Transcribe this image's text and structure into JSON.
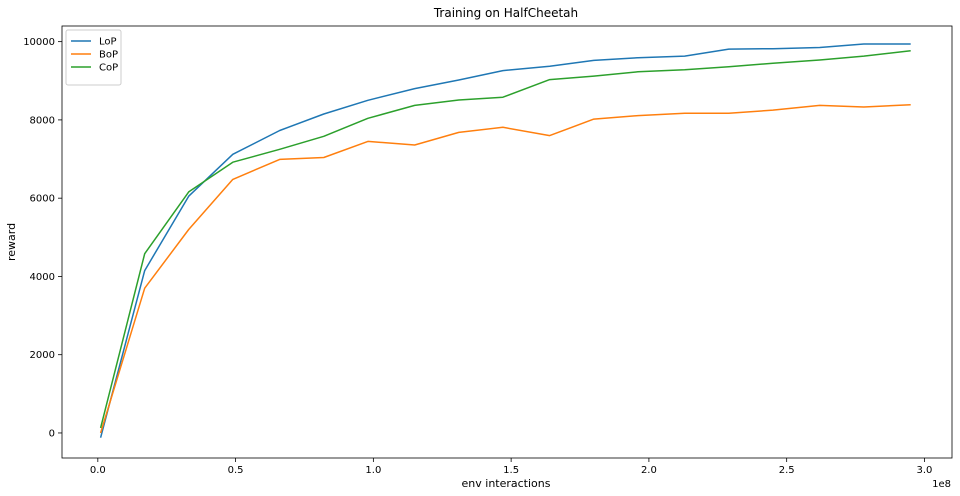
{
  "chart_data": {
    "type": "line",
    "title": "Training on HalfCheetah",
    "xlabel": "env interactions",
    "ylabel": "reward",
    "x_offset_label": "1e8",
    "xlim": [
      -0.13,
      3.1
    ],
    "ylim": [
      -640,
      10400
    ],
    "xticks": [
      0.0,
      0.5,
      1.0,
      1.5,
      2.0,
      2.5,
      3.0
    ],
    "xtick_labels": [
      "0.0",
      "0.5",
      "1.0",
      "1.5",
      "2.0",
      "2.5",
      "3.0"
    ],
    "yticks": [
      0,
      2000,
      4000,
      6000,
      8000,
      10000
    ],
    "ytick_labels": [
      "0",
      "2000",
      "4000",
      "6000",
      "8000",
      "10000"
    ],
    "legend_position": "top-left",
    "x": [
      0.01,
      0.17,
      0.33,
      0.49,
      0.66,
      0.82,
      0.98,
      1.15,
      1.31,
      1.47,
      1.64,
      1.8,
      1.96,
      2.13,
      2.29,
      2.45,
      2.62,
      2.78,
      2.95
    ],
    "series": [
      {
        "name": "LoP",
        "color": "#1f77b4",
        "values": [
          -120,
          4150,
          6050,
          7120,
          7730,
          8150,
          8500,
          8800,
          9020,
          9260,
          9370,
          9520,
          9590,
          9630,
          9810,
          9820,
          9850,
          9940,
          9940
        ]
      },
      {
        "name": "BoP",
        "color": "#ff7f0e",
        "values": [
          0,
          3700,
          5200,
          6480,
          6990,
          7040,
          7450,
          7360,
          7680,
          7810,
          7600,
          8020,
          8110,
          8170,
          8170,
          8250,
          8370,
          8330,
          8390
        ]
      },
      {
        "name": "CoP",
        "color": "#2ca02c",
        "values": [
          130,
          4580,
          6160,
          6920,
          7250,
          7580,
          8040,
          8370,
          8510,
          8580,
          9030,
          9120,
          9230,
          9280,
          9360,
          9450,
          9530,
          9630,
          9770
        ]
      }
    ]
  }
}
